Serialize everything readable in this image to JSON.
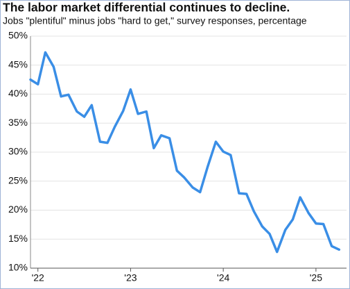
{
  "chart_data": {
    "type": "line",
    "title": "The labor market differential continues to decline.",
    "subtitle": "Jobs \"plentiful\" minus jobs \"hard to get,\" survey responses, percentage",
    "x": [
      2021.92,
      2022.0,
      2022.08,
      2022.17,
      2022.25,
      2022.33,
      2022.42,
      2022.5,
      2022.58,
      2022.67,
      2022.75,
      2022.83,
      2022.92,
      2023.0,
      2023.08,
      2023.17,
      2023.25,
      2023.33,
      2023.42,
      2023.5,
      2023.58,
      2023.67,
      2023.75,
      2023.83,
      2023.92,
      2024.0,
      2024.08,
      2024.17,
      2024.25,
      2024.33,
      2024.42,
      2024.5,
      2024.58,
      2024.67,
      2024.75,
      2024.83,
      2024.92,
      2025.0,
      2025.08,
      2025.17,
      2025.25
    ],
    "series": [
      {
        "name": "Labor differential",
        "color": "#3a8ee6",
        "values": [
          42.5,
          41.7,
          47.2,
          44.7,
          39.6,
          39.9,
          37.0,
          36.1,
          38.1,
          31.8,
          31.6,
          34.4,
          37.1,
          40.8,
          36.6,
          37.0,
          30.7,
          32.9,
          32.4,
          26.8,
          25.6,
          23.9,
          23.1,
          27.4,
          31.8,
          30.1,
          29.5,
          22.9,
          22.8,
          19.8,
          17.2,
          15.9,
          12.8,
          16.6,
          18.4,
          22.2,
          19.5,
          17.7,
          17.6,
          13.8,
          13.2
        ]
      }
    ],
    "xlim": [
      2021.92,
      2025.33
    ],
    "xticks": [
      {
        "value": 2022,
        "label": "'22"
      },
      {
        "value": 2023,
        "label": "'23"
      },
      {
        "value": 2024,
        "label": "'24"
      },
      {
        "value": 2025,
        "label": "'25"
      }
    ],
    "ylim": [
      10,
      50
    ],
    "yticks": [
      {
        "value": 10,
        "label": "10%"
      },
      {
        "value": 15,
        "label": "15%"
      },
      {
        "value": 20,
        "label": "20%"
      },
      {
        "value": 25,
        "label": "25%"
      },
      {
        "value": 30,
        "label": "30%"
      },
      {
        "value": 35,
        "label": "35%"
      },
      {
        "value": 40,
        "label": "40%"
      },
      {
        "value": 45,
        "label": "45%"
      },
      {
        "value": 50,
        "label": "50%"
      }
    ],
    "grid": true
  }
}
